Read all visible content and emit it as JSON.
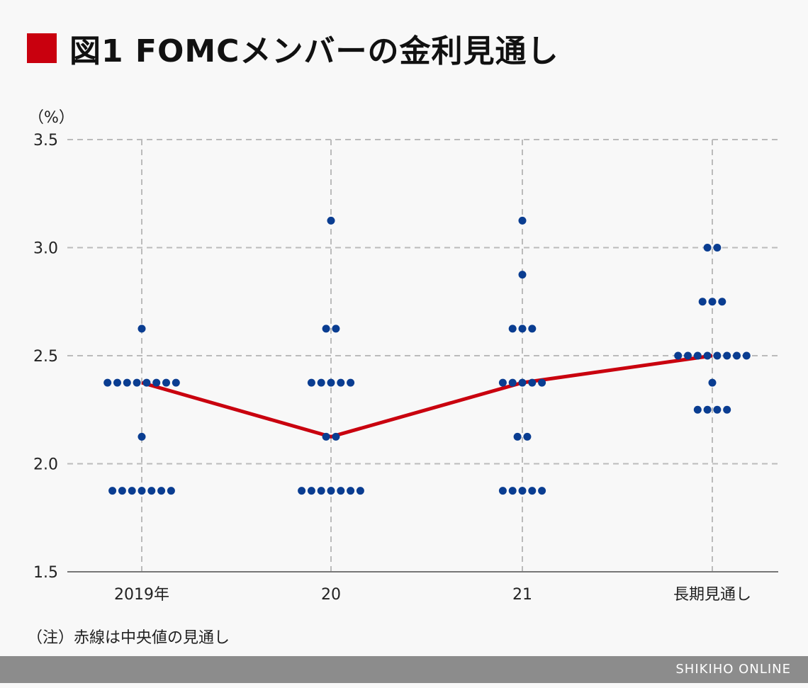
{
  "header": {
    "title": "図1 FOMCメンバーの金利見通し",
    "title_marker_color": "#c9000e"
  },
  "unit_label": "（%）",
  "note": "（注）赤線は中央値の見通し",
  "footer": {
    "brand": "SHIKIHO ONLINE"
  },
  "chart_data": {
    "type": "scatter",
    "title": "図1 FOMCメンバーの金利見通し",
    "xlabel": "",
    "ylabel": "（%）",
    "ylim": [
      1.5,
      3.5
    ],
    "yticks": [
      "1.5",
      "2.0",
      "2.5",
      "3.0",
      "3.5"
    ],
    "categories": [
      "2019年",
      "20",
      "21",
      "長期見通し"
    ],
    "grid": true,
    "dot_color": "#0a3d91",
    "median_color": "#c9000e",
    "series": [
      {
        "name": "FOMC dots",
        "points": {
          "2019年": [
            {
              "rate": 2.625,
              "count": 1
            },
            {
              "rate": 2.375,
              "count": 8
            },
            {
              "rate": 2.125,
              "count": 1
            },
            {
              "rate": 1.875,
              "count": 7
            }
          ],
          "20": [
            {
              "rate": 3.125,
              "count": 1
            },
            {
              "rate": 2.625,
              "count": 2
            },
            {
              "rate": 2.375,
              "count": 5
            },
            {
              "rate": 2.125,
              "count": 2
            },
            {
              "rate": 1.875,
              "count": 7
            }
          ],
          "21": [
            {
              "rate": 3.125,
              "count": 1
            },
            {
              "rate": 2.875,
              "count": 1
            },
            {
              "rate": 2.625,
              "count": 3
            },
            {
              "rate": 2.375,
              "count": 5
            },
            {
              "rate": 2.125,
              "count": 2
            },
            {
              "rate": 1.875,
              "count": 5
            }
          ],
          "長期見通し": [
            {
              "rate": 3.0,
              "count": 2
            },
            {
              "rate": 2.75,
              "count": 3
            },
            {
              "rate": 2.5,
              "count": 8
            },
            {
              "rate": 2.375,
              "count": 1
            },
            {
              "rate": 2.25,
              "count": 4
            }
          ]
        }
      },
      {
        "name": "中央値",
        "values": [
          2.375,
          2.125,
          2.375,
          2.5
        ]
      }
    ],
    "annotations": [
      "（注）赤線は中央値の見通し"
    ]
  }
}
